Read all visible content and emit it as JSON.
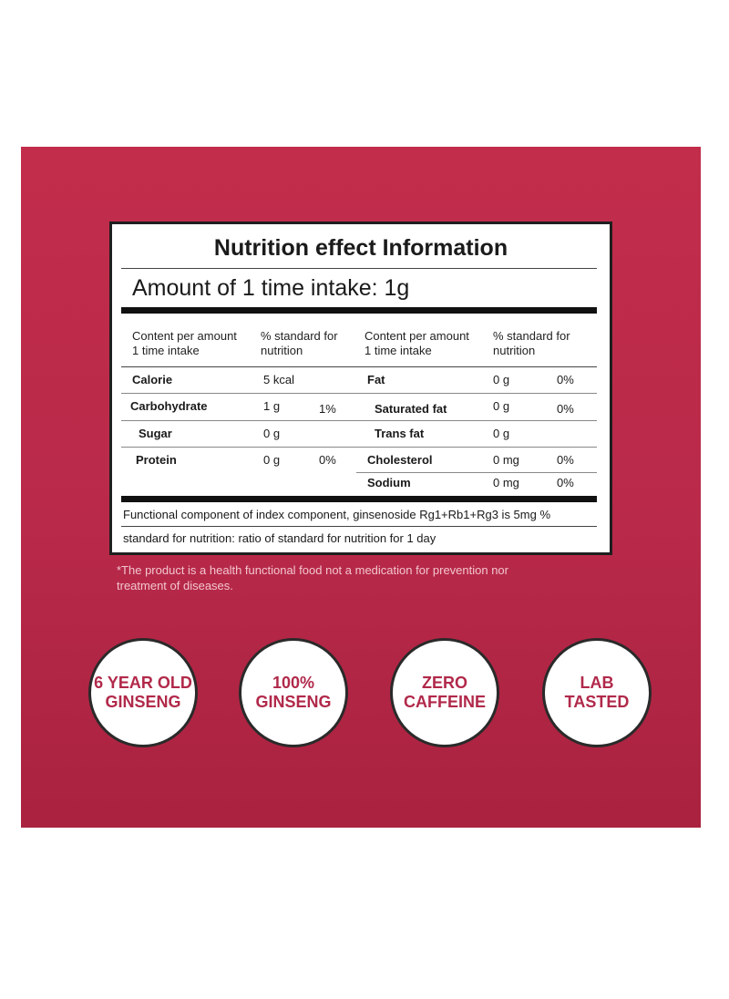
{
  "title": "Nutrition effect Information",
  "amount": "Amount of 1 time intake: 1g",
  "headers": {
    "content": "Content per amount\n1 time intake",
    "standard": "% standard for\nnutrition"
  },
  "left_rows": [
    {
      "name": "Calorie",
      "amount": "5 kcal",
      "percent": ""
    },
    {
      "name": "Carbohydrate",
      "amount": "1 g",
      "percent": "1%"
    },
    {
      "name": "Sugar",
      "amount": "0 g",
      "percent": ""
    },
    {
      "name": "Protein",
      "amount": "0 g",
      "percent": "0%"
    }
  ],
  "right_rows": [
    {
      "name": "Fat",
      "amount": "0 g",
      "percent": "0%"
    },
    {
      "name": "Saturated fat",
      "amount": "0 g",
      "percent": "0%"
    },
    {
      "name": "Trans fat",
      "amount": "0 g",
      "percent": ""
    },
    {
      "name": "Cholesterol",
      "amount": "0 mg",
      "percent": "0%"
    },
    {
      "name": "Sodium",
      "amount": "0 mg",
      "percent": "0%"
    }
  ],
  "footnote1": "Functional component of index component, ginsenoside Rg1+Rb1+Rg3 is 5mg %",
  "footnote2": "standard for nutrition: ratio of standard for nutrition for 1 day",
  "disclaimer": "*The product is a health functional food not a medication for prevention nor treatment of diseases.",
  "badges": [
    "6 YEAR OLD\nGINSENG",
    "100%\nGINSENG",
    "ZERO\nCAFFEINE",
    "LAB\nTASTED"
  ],
  "colors": {
    "background": "#c22d4b",
    "badge_text": "#b1294a"
  }
}
